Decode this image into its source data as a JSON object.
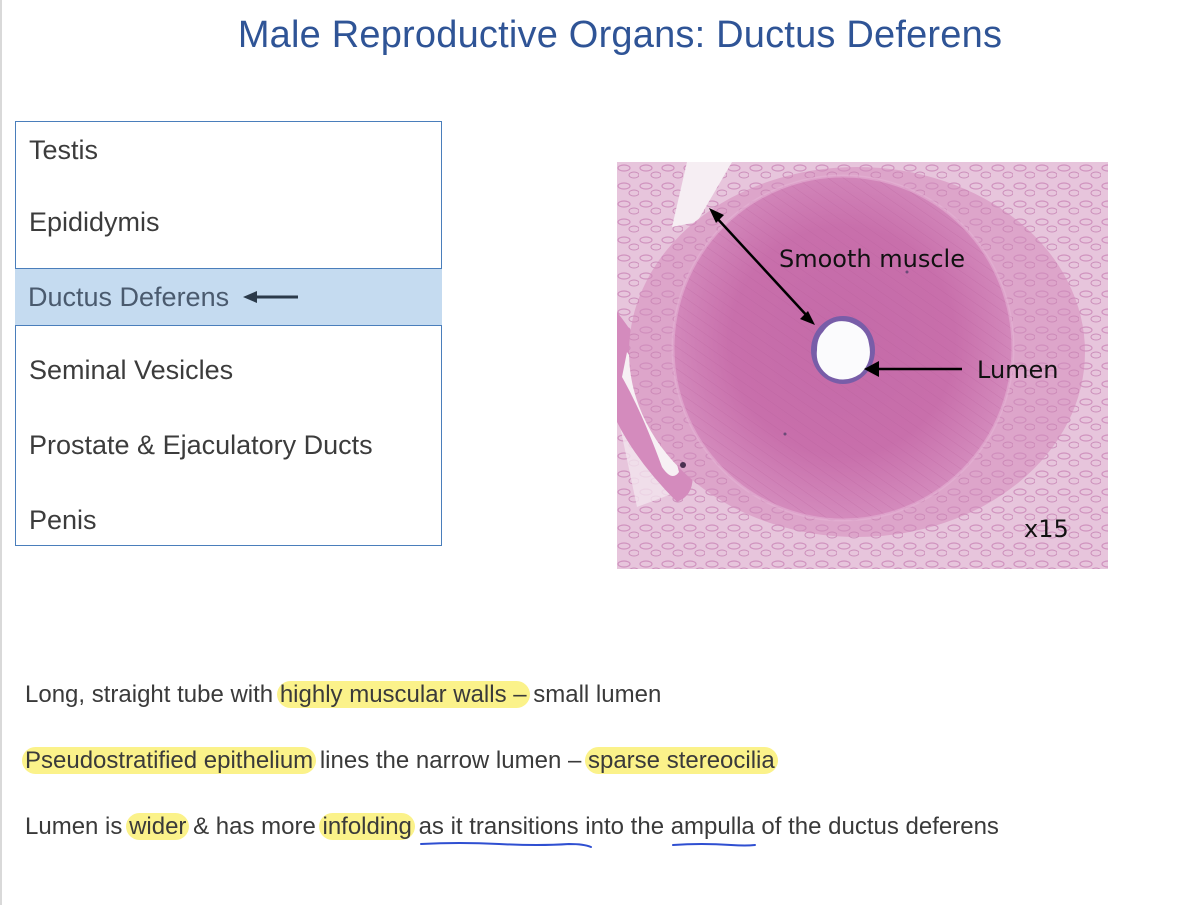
{
  "slide": {
    "title": "Male Reproductive Organs: Ductus Deferens"
  },
  "topics": [
    {
      "label": "Testis",
      "active": false
    },
    {
      "label": "Epididymis",
      "active": false
    },
    {
      "label": "Ductus Deferens",
      "active": true
    },
    {
      "label": "Seminal Vesicles",
      "active": false
    },
    {
      "label": "Prostate & Ejaculatory Ducts",
      "active": false
    },
    {
      "label": "Penis",
      "active": false
    }
  ],
  "micrograph": {
    "labels": {
      "smooth_muscle": "Smooth muscle",
      "lumen": "Lumen",
      "magnification": "x15"
    }
  },
  "notes": {
    "line1": {
      "a": "Long, straight tube with ",
      "b": "highly muscular walls –",
      "c": " small lumen"
    },
    "line2": {
      "a": "Pseudostratified epithelium",
      "b": " lines the narrow lumen – ",
      "c": "sparse stereocilia"
    },
    "line3": {
      "a": "Lumen is ",
      "b": "wider",
      "c": " & has more ",
      "d": "infolding",
      "e": " ",
      "f": "as it transitions",
      "g": " into the ",
      "h": "ampulla",
      "i": " of the ductus deferens"
    }
  },
  "colors": {
    "title": "#2f5496",
    "list_border": "#4a7ebb",
    "active_fill": "#c5dbf0",
    "highlight": "#fbf28a",
    "underline_ink": "#2f4fd1"
  }
}
